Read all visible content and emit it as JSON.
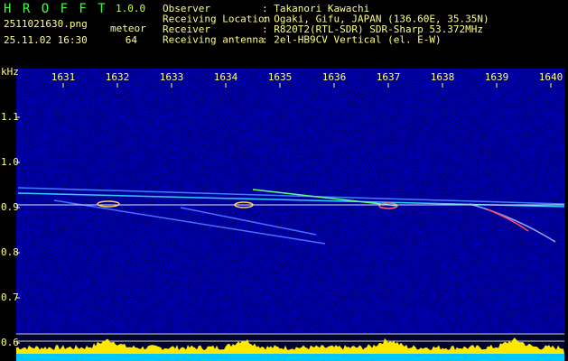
{
  "header": {
    "app": "H R O F F T",
    "version": "1.0.0",
    "file": "2511021630.png",
    "datetime": "25.11.02 16:30",
    "meteor_label": "meteor",
    "meteor_count": "64",
    "info": [
      {
        "label": "Observer",
        "value": ": Takanori Kawachi"
      },
      {
        "label": "Receiving Location",
        "value": ": Ogaki, Gifu, JAPAN (136.60E, 35.35N)"
      },
      {
        "label": "Receiver",
        "value": ": R820T2(RTL-SDR) SDR-Sharp 53.372MHz"
      },
      {
        "label": "Receiving antenna",
        "value": ": 2el-HB9CV Vertical (el. E-W)"
      }
    ]
  },
  "plot": {
    "unit": "kHz",
    "time_labels": [
      "1631",
      "1632",
      "1633",
      "1634",
      "1635",
      "1636",
      "1637",
      "1638",
      "1639",
      "1640"
    ],
    "freq_labels": [
      "1.1",
      "1.0",
      "0.9",
      "0.8",
      "0.7",
      "0.6"
    ]
  }
}
